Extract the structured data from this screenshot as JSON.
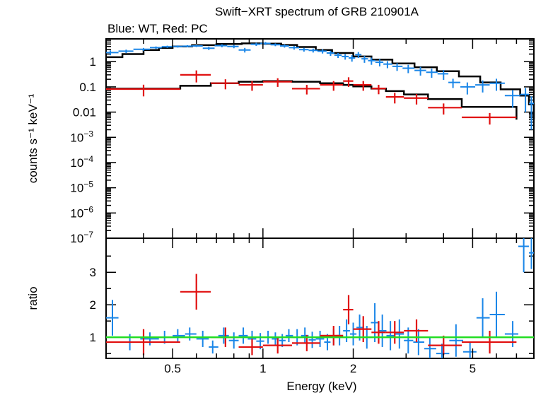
{
  "chart_data": {
    "type": "scatter",
    "title": "Swift−XRT spectrum of GRB 210901A",
    "subtitle": "Blue: WT, Red: PC",
    "xlabel": "Energy (keV)",
    "x_scale": "log",
    "xlim": [
      0.3,
      8.0
    ],
    "x_ticks": [
      {
        "value": 0.5,
        "label": "0.5"
      },
      {
        "value": 1,
        "label": "1"
      },
      {
        "value": 2,
        "label": "2"
      },
      {
        "value": 5,
        "label": "5"
      }
    ],
    "top_panel": {
      "ylabel": "counts s⁻¹ keV⁻¹",
      "y_scale": "log",
      "ylim": [
        1e-07,
        8
      ],
      "y_ticks": [
        {
          "value": 1,
          "base": "1",
          "exp": ""
        },
        {
          "value": 0.1,
          "base": "0.1",
          "exp": ""
        },
        {
          "value": 0.01,
          "base": "0.01",
          "exp": ""
        },
        {
          "value": 0.001,
          "base": "10",
          "exp": "−3"
        },
        {
          "value": 0.0001,
          "base": "10",
          "exp": "−4"
        },
        {
          "value": 1e-05,
          "base": "10",
          "exp": "−5"
        },
        {
          "value": 1e-06,
          "base": "10",
          "exp": "−6"
        },
        {
          "value": 1e-07,
          "base": "10",
          "exp": "−7"
        }
      ],
      "series": [
        {
          "name": "WT",
          "color": "#1a86e8",
          "x": [
            0.31,
            0.35,
            0.4,
            0.44,
            0.48,
            0.52,
            0.56,
            0.6,
            0.66,
            0.73,
            0.8,
            0.87,
            0.95,
            1.02,
            1.1,
            1.18,
            1.27,
            1.37,
            1.47,
            1.58,
            1.68,
            1.78,
            1.88,
            1.98,
            2.08,
            2.18,
            2.3,
            2.45,
            2.6,
            2.8,
            3.05,
            3.35,
            3.65,
            4.0,
            4.3,
            4.8,
            5.4,
            6.0,
            6.8,
            7.5,
            7.85
          ],
          "y": [
            2.3,
            2.6,
            3.1,
            3.6,
            3.9,
            4.0,
            4.1,
            4.2,
            3.4,
            4.3,
            4.0,
            2.9,
            4.9,
            5.3,
            4.7,
            4.2,
            3.6,
            3.0,
            2.8,
            2.6,
            2.2,
            1.8,
            1.6,
            1.4,
            1.9,
            1.3,
            1.1,
            0.95,
            0.8,
            0.65,
            0.55,
            0.45,
            0.38,
            0.33,
            0.15,
            0.1,
            0.12,
            0.14,
            0.045,
            0.05,
            0.022
          ],
          "yerr": [
            0.5,
            0.4,
            0.4,
            0.4,
            0.4,
            0.4,
            0.4,
            0.4,
            0.5,
            0.6,
            0.6,
            0.6,
            0.7,
            0.7,
            0.6,
            0.6,
            0.6,
            0.5,
            0.5,
            0.5,
            0.5,
            0.4,
            0.4,
            0.4,
            0.5,
            0.4,
            0.35,
            0.3,
            0.25,
            0.22,
            0.2,
            0.17,
            0.15,
            0.14,
            0.06,
            0.05,
            0.06,
            0.07,
            0.03,
            0.04,
            0.02
          ],
          "xlo": [
            0.3,
            0.33,
            0.37,
            0.42,
            0.46,
            0.5,
            0.54,
            0.58,
            0.63,
            0.69,
            0.76,
            0.83,
            0.91,
            0.98,
            1.06,
            1.14,
            1.22,
            1.32,
            1.42,
            1.52,
            1.63,
            1.73,
            1.83,
            1.93,
            2.03,
            2.13,
            2.24,
            2.37,
            2.52,
            2.7,
            2.92,
            3.2,
            3.5,
            3.82,
            4.15,
            4.55,
            5.1,
            5.7,
            6.4,
            7.2,
            7.7
          ],
          "xhi": [
            0.33,
            0.37,
            0.42,
            0.46,
            0.5,
            0.54,
            0.58,
            0.63,
            0.69,
            0.76,
            0.83,
            0.91,
            0.98,
            1.06,
            1.14,
            1.22,
            1.32,
            1.42,
            1.52,
            1.63,
            1.73,
            1.83,
            1.93,
            2.03,
            2.13,
            2.24,
            2.37,
            2.52,
            2.7,
            2.92,
            3.2,
            3.5,
            3.82,
            4.15,
            4.55,
            5.1,
            5.7,
            6.4,
            7.2,
            7.7,
            8.0
          ]
        },
        {
          "name": "PC",
          "color": "#e11010",
          "x": [
            0.4,
            0.6,
            0.75,
            0.92,
            1.12,
            1.4,
            1.72,
            1.93,
            2.16,
            2.43,
            2.75,
            3.25,
            4.0,
            5.7
          ],
          "y": [
            0.082,
            0.3,
            0.14,
            0.12,
            0.16,
            0.085,
            0.12,
            0.17,
            0.12,
            0.086,
            0.04,
            0.036,
            0.015,
            0.0062
          ],
          "yerr": [
            0.04,
            0.15,
            0.06,
            0.05,
            0.06,
            0.035,
            0.05,
            0.07,
            0.05,
            0.035,
            0.018,
            0.016,
            0.007,
            0.003
          ],
          "xlo": [
            0.3,
            0.53,
            0.67,
            0.83,
            1.0,
            1.25,
            1.55,
            1.85,
            2.0,
            2.3,
            2.57,
            2.95,
            3.55,
            4.6
          ],
          "xhi": [
            0.53,
            0.67,
            0.83,
            1.0,
            1.25,
            1.55,
            1.85,
            2.0,
            2.3,
            2.57,
            2.95,
            3.55,
            4.6,
            7.0
          ]
        }
      ],
      "models": [
        {
          "name": "WT model",
          "x": [
            0.3,
            0.34,
            0.4,
            0.45,
            0.5,
            0.58,
            0.7,
            0.85,
            1.0,
            1.15,
            1.3,
            1.5,
            1.7,
            2.0,
            2.3,
            2.7,
            3.2,
            3.8,
            4.5,
            5.3,
            6.2,
            7.2,
            7.7,
            8.0
          ],
          "y": [
            1.5,
            2.0,
            2.9,
            3.5,
            4.0,
            4.5,
            5.0,
            5.3,
            5.2,
            4.6,
            3.8,
            2.9,
            2.2,
            1.6,
            1.2,
            0.85,
            0.6,
            0.42,
            0.26,
            0.15,
            0.08,
            0.045,
            0.02,
            0.005
          ]
        },
        {
          "name": "PC model",
          "x": [
            0.3,
            0.53,
            0.67,
            0.83,
            1.0,
            1.25,
            1.55,
            1.85,
            2.0,
            2.3,
            2.57,
            2.95,
            3.55,
            4.6,
            7.0
          ],
          "y": [
            0.085,
            0.11,
            0.14,
            0.16,
            0.17,
            0.16,
            0.14,
            0.12,
            0.105,
            0.085,
            0.068,
            0.05,
            0.033,
            0.016,
            0.005
          ]
        }
      ]
    },
    "bottom_panel": {
      "ylabel": "ratio",
      "y_scale": "linear",
      "ylim": [
        0.35,
        4.05
      ],
      "y_ticks": [
        {
          "value": 1,
          "label": "1"
        },
        {
          "value": 2,
          "label": "2"
        },
        {
          "value": 3,
          "label": "3"
        }
      ],
      "reference_line": {
        "value": 1,
        "color": "#22dd22"
      },
      "series": [
        {
          "name": "WT",
          "color": "#1a86e8",
          "x": [
            0.315,
            0.36,
            0.42,
            0.47,
            0.52,
            0.57,
            0.63,
            0.68,
            0.74,
            0.8,
            0.86,
            0.92,
            0.98,
            1.04,
            1.1,
            1.16,
            1.22,
            1.3,
            1.38,
            1.46,
            1.55,
            1.64,
            1.72,
            1.8,
            1.9,
            2.0,
            2.1,
            2.22,
            2.36,
            2.5,
            2.66,
            2.85,
            3.05,
            3.3,
            3.6,
            3.95,
            4.4,
            4.9,
            5.4,
            6.0,
            6.8,
            7.4,
            7.85
          ],
          "y": [
            1.6,
            0.85,
            0.95,
            1.0,
            1.05,
            1.1,
            0.95,
            0.7,
            1.05,
            0.9,
            1.05,
            0.95,
            0.88,
            1.0,
            0.95,
            0.9,
            1.05,
            1.0,
            1.05,
            0.92,
            0.95,
            0.85,
            1.0,
            1.05,
            1.2,
            1.1,
            1.3,
            1.0,
            1.45,
            1.2,
            1.05,
            1.1,
            0.9,
            0.85,
            0.65,
            0.5,
            0.9,
            0.55,
            1.6,
            1.7,
            1.1,
            3.8,
            3.6
          ],
          "yerr": [
            0.55,
            0.25,
            0.2,
            0.2,
            0.2,
            0.2,
            0.25,
            0.2,
            0.25,
            0.25,
            0.25,
            0.25,
            0.25,
            0.2,
            0.2,
            0.2,
            0.2,
            0.25,
            0.25,
            0.25,
            0.25,
            0.25,
            0.25,
            0.3,
            0.35,
            0.35,
            0.4,
            0.35,
            0.6,
            0.5,
            0.45,
            0.45,
            0.4,
            0.4,
            0.35,
            0.3,
            0.5,
            0.3,
            0.6,
            0.7,
            0.4,
            0.8,
            0.5
          ],
          "xlo": [
            0.3,
            0.33,
            0.39,
            0.45,
            0.5,
            0.55,
            0.6,
            0.66,
            0.71,
            0.77,
            0.83,
            0.89,
            0.95,
            1.01,
            1.07,
            1.13,
            1.19,
            1.26,
            1.34,
            1.42,
            1.5,
            1.6,
            1.68,
            1.76,
            1.85,
            1.95,
            2.05,
            2.16,
            2.29,
            2.43,
            2.58,
            2.76,
            2.95,
            3.17,
            3.45,
            3.78,
            4.18,
            4.65,
            5.15,
            5.7,
            6.4,
            7.1,
            7.7
          ],
          "xhi": [
            0.33,
            0.39,
            0.45,
            0.5,
            0.55,
            0.6,
            0.66,
            0.71,
            0.77,
            0.83,
            0.89,
            0.95,
            1.01,
            1.07,
            1.13,
            1.19,
            1.26,
            1.34,
            1.42,
            1.5,
            1.6,
            1.68,
            1.76,
            1.85,
            1.95,
            2.05,
            2.16,
            2.29,
            2.43,
            2.58,
            2.76,
            2.95,
            3.17,
            3.45,
            3.78,
            4.18,
            4.65,
            5.15,
            5.7,
            6.4,
            7.1,
            7.7,
            8.0
          ]
        },
        {
          "name": "PC",
          "color": "#e11010",
          "x": [
            0.4,
            0.6,
            0.75,
            0.92,
            1.12,
            1.4,
            1.72,
            1.93,
            2.16,
            2.43,
            2.75,
            3.25,
            4.0,
            5.7
          ],
          "y": [
            0.85,
            2.4,
            1.0,
            0.7,
            0.75,
            0.82,
            1.05,
            1.85,
            1.25,
            1.15,
            1.15,
            1.2,
            0.75,
            0.85
          ],
          "yerr": [
            0.4,
            0.55,
            0.3,
            0.25,
            0.25,
            0.25,
            0.3,
            0.45,
            0.4,
            0.35,
            0.35,
            0.35,
            0.3,
            0.35
          ],
          "xlo": [
            0.3,
            0.53,
            0.67,
            0.83,
            1.0,
            1.25,
            1.55,
            1.85,
            2.0,
            2.3,
            2.57,
            2.95,
            3.55,
            4.6
          ],
          "xhi": [
            0.53,
            0.67,
            0.83,
            1.0,
            1.25,
            1.55,
            1.85,
            2.0,
            2.3,
            2.57,
            2.95,
            3.55,
            4.6,
            7.0
          ]
        }
      ]
    }
  }
}
